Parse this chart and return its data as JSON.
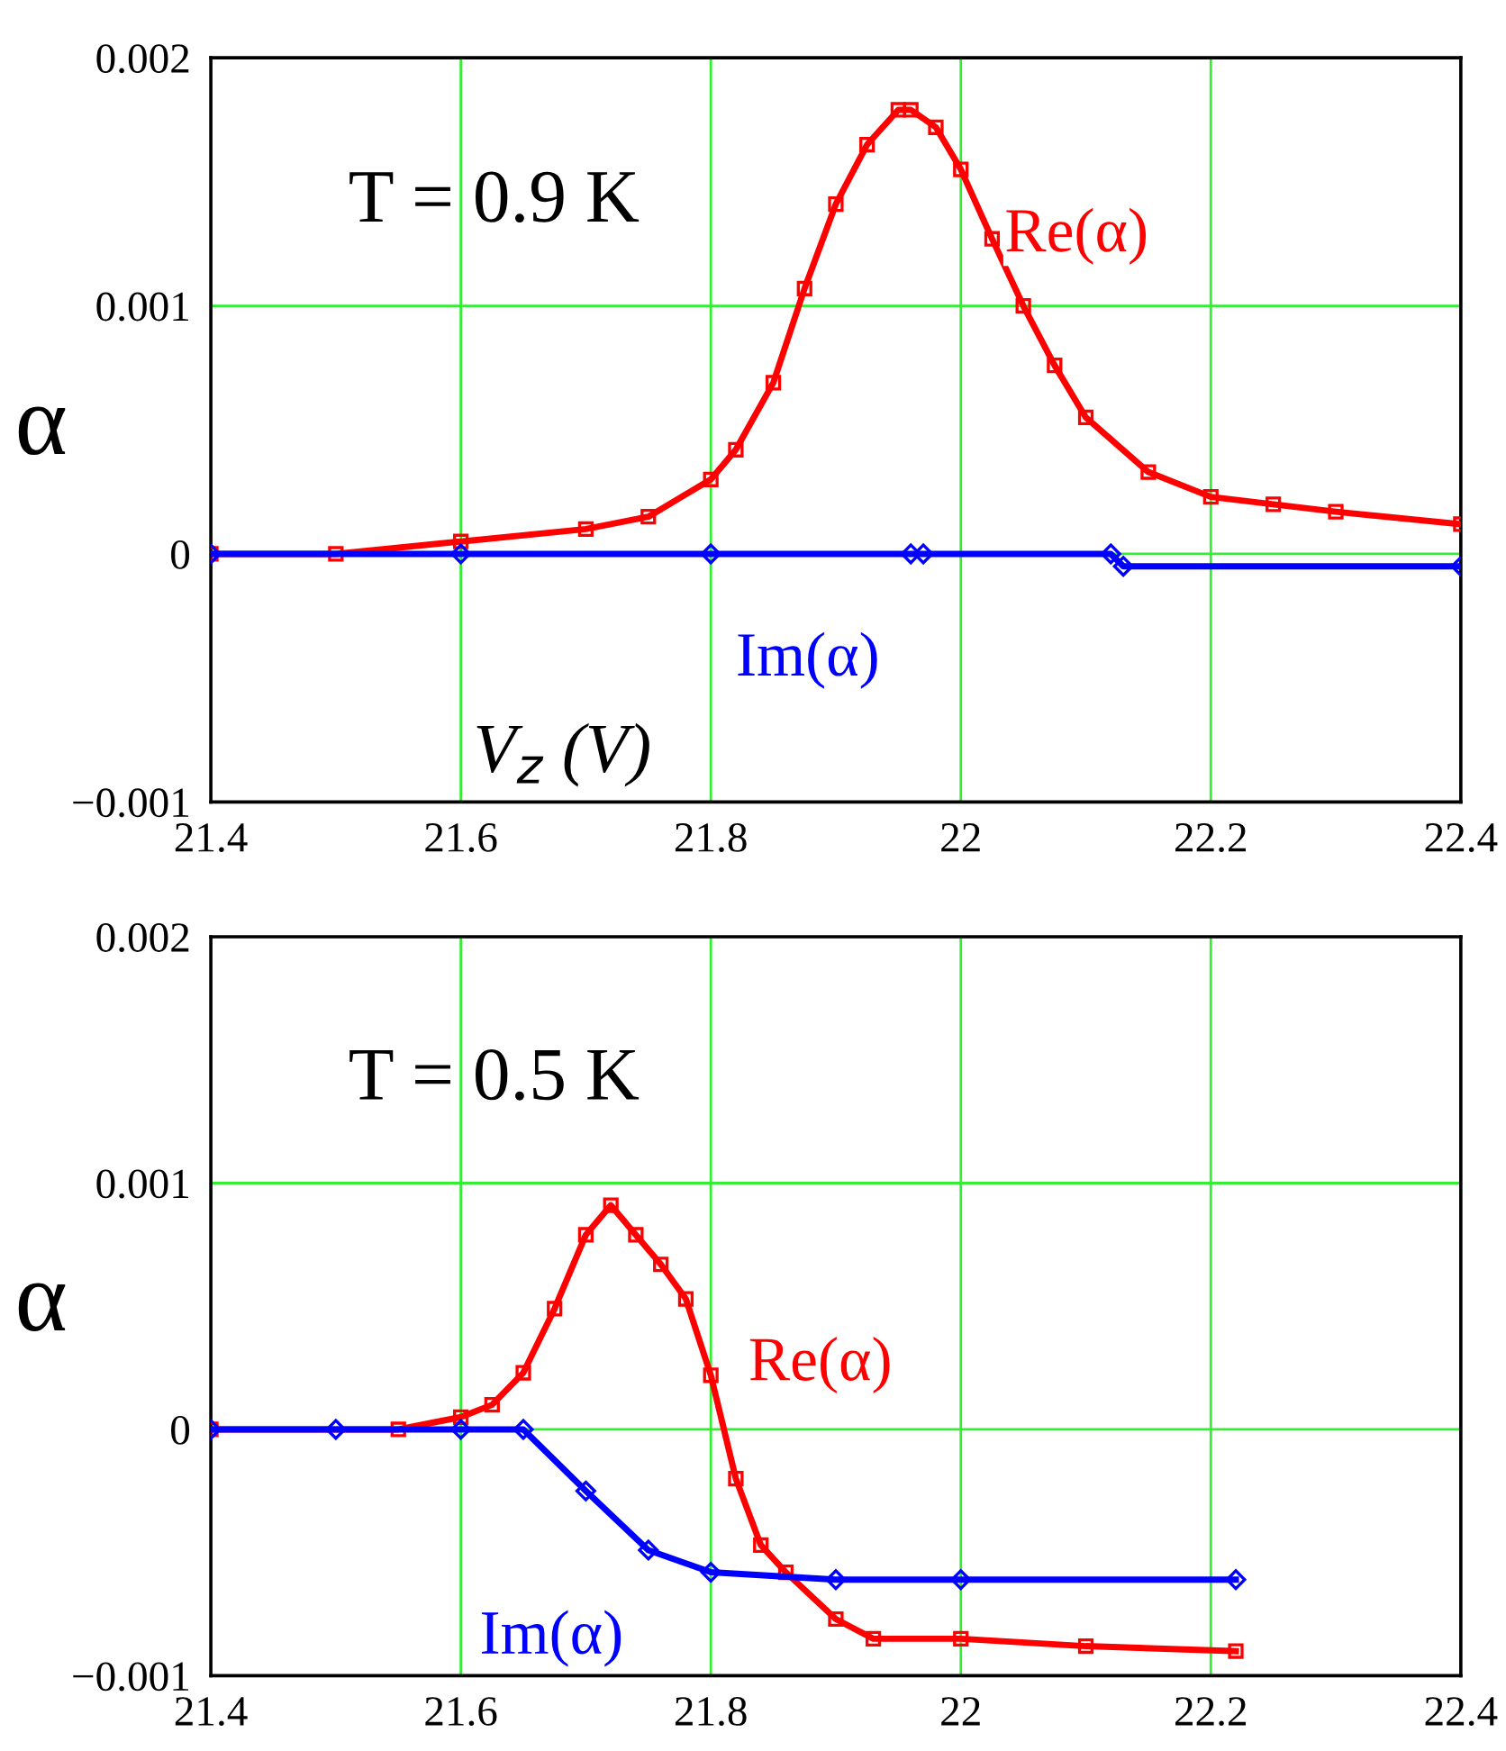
{
  "chart_data": [
    {
      "type": "line",
      "title": "T = 0.9 K",
      "xlabel": "V$_{z}$ (V)",
      "ylabel": "α",
      "marker": "square",
      "grid": true,
      "legend": false,
      "xlim": [
        21.4,
        22.4
      ],
      "xticks": [
        21.4,
        21.6,
        21.8,
        22,
        22.2,
        22.4
      ],
      "ylim": [
        -0.001,
        0.002
      ],
      "yticks": [
        -0.001,
        0,
        0.001,
        0.002
      ],
      "series": [
        {
          "name": "Re(α)",
          "color": "#ff0000",
          "x": [
            21.4,
            21.5,
            21.6,
            21.7,
            21.75,
            21.8,
            21.82,
            21.85,
            21.875,
            21.9,
            21.925,
            21.95,
            21.96,
            21.98,
            22.0,
            22.025,
            22.05,
            22.075,
            22.1,
            22.15,
            22.2,
            22.25,
            22.3,
            22.4
          ],
          "values": [
            0,
            0,
            5e-05,
            0.0001,
            0.00015,
            0.0003,
            0.00042,
            0.00069,
            0.00107,
            0.00141,
            0.00165,
            0.00179,
            0.00179,
            0.00172,
            0.00155,
            0.00127,
            0.001,
            0.00076,
            0.00055,
            0.00033,
            0.00023,
            0.0002,
            0.00017,
            0.00012
          ]
        },
        {
          "name": "Im(α)",
          "color": "#0000ff",
          "marker": "diamond",
          "x": [
            21.4,
            21.6,
            21.8,
            21.96,
            21.97,
            22.12,
            22.13,
            22.4
          ],
          "values": [
            0,
            0,
            0,
            0,
            0,
            0,
            -5e-05,
            -5e-05
          ]
        }
      ]
    },
    {
      "type": "line",
      "title": "T = 0.5 K",
      "ylabel": "α",
      "marker": "square",
      "grid": true,
      "legend": false,
      "xlim": [
        21.4,
        22.4
      ],
      "xticks": [
        21.4,
        21.6,
        21.8,
        22,
        22.2,
        22.4
      ],
      "ylim": [
        -0.001,
        0.002
      ],
      "yticks": [
        -0.001,
        0,
        0.001,
        0.002
      ],
      "series": [
        {
          "name": "Re(α)",
          "color": "#ff0000",
          "x": [
            21.4,
            21.55,
            21.6,
            21.625,
            21.65,
            21.675,
            21.7,
            21.72,
            21.74,
            21.76,
            21.78,
            21.8,
            21.82,
            21.84,
            21.86,
            21.9,
            21.93,
            22.0,
            22.1,
            22.22
          ],
          "values": [
            0,
            0,
            5e-05,
            0.0001,
            0.00023,
            0.00049,
            0.00079,
            0.00091,
            0.00079,
            0.00067,
            0.00053,
            0.00022,
            -0.0002,
            -0.00047,
            -0.00058,
            -0.00077,
            -0.00085,
            -0.00085,
            -0.00088,
            -0.0009
          ]
        },
        {
          "name": "Im(α)",
          "color": "#0000ff",
          "marker": "diamond",
          "x": [
            21.4,
            21.5,
            21.6,
            21.65,
            21.7,
            21.75,
            21.8,
            21.9,
            22.0,
            22.22
          ],
          "values": [
            0,
            0,
            0,
            0,
            -0.00025,
            -0.00049,
            -0.00058,
            -0.00061,
            -0.00061,
            -0.00061
          ]
        }
      ]
    }
  ]
}
